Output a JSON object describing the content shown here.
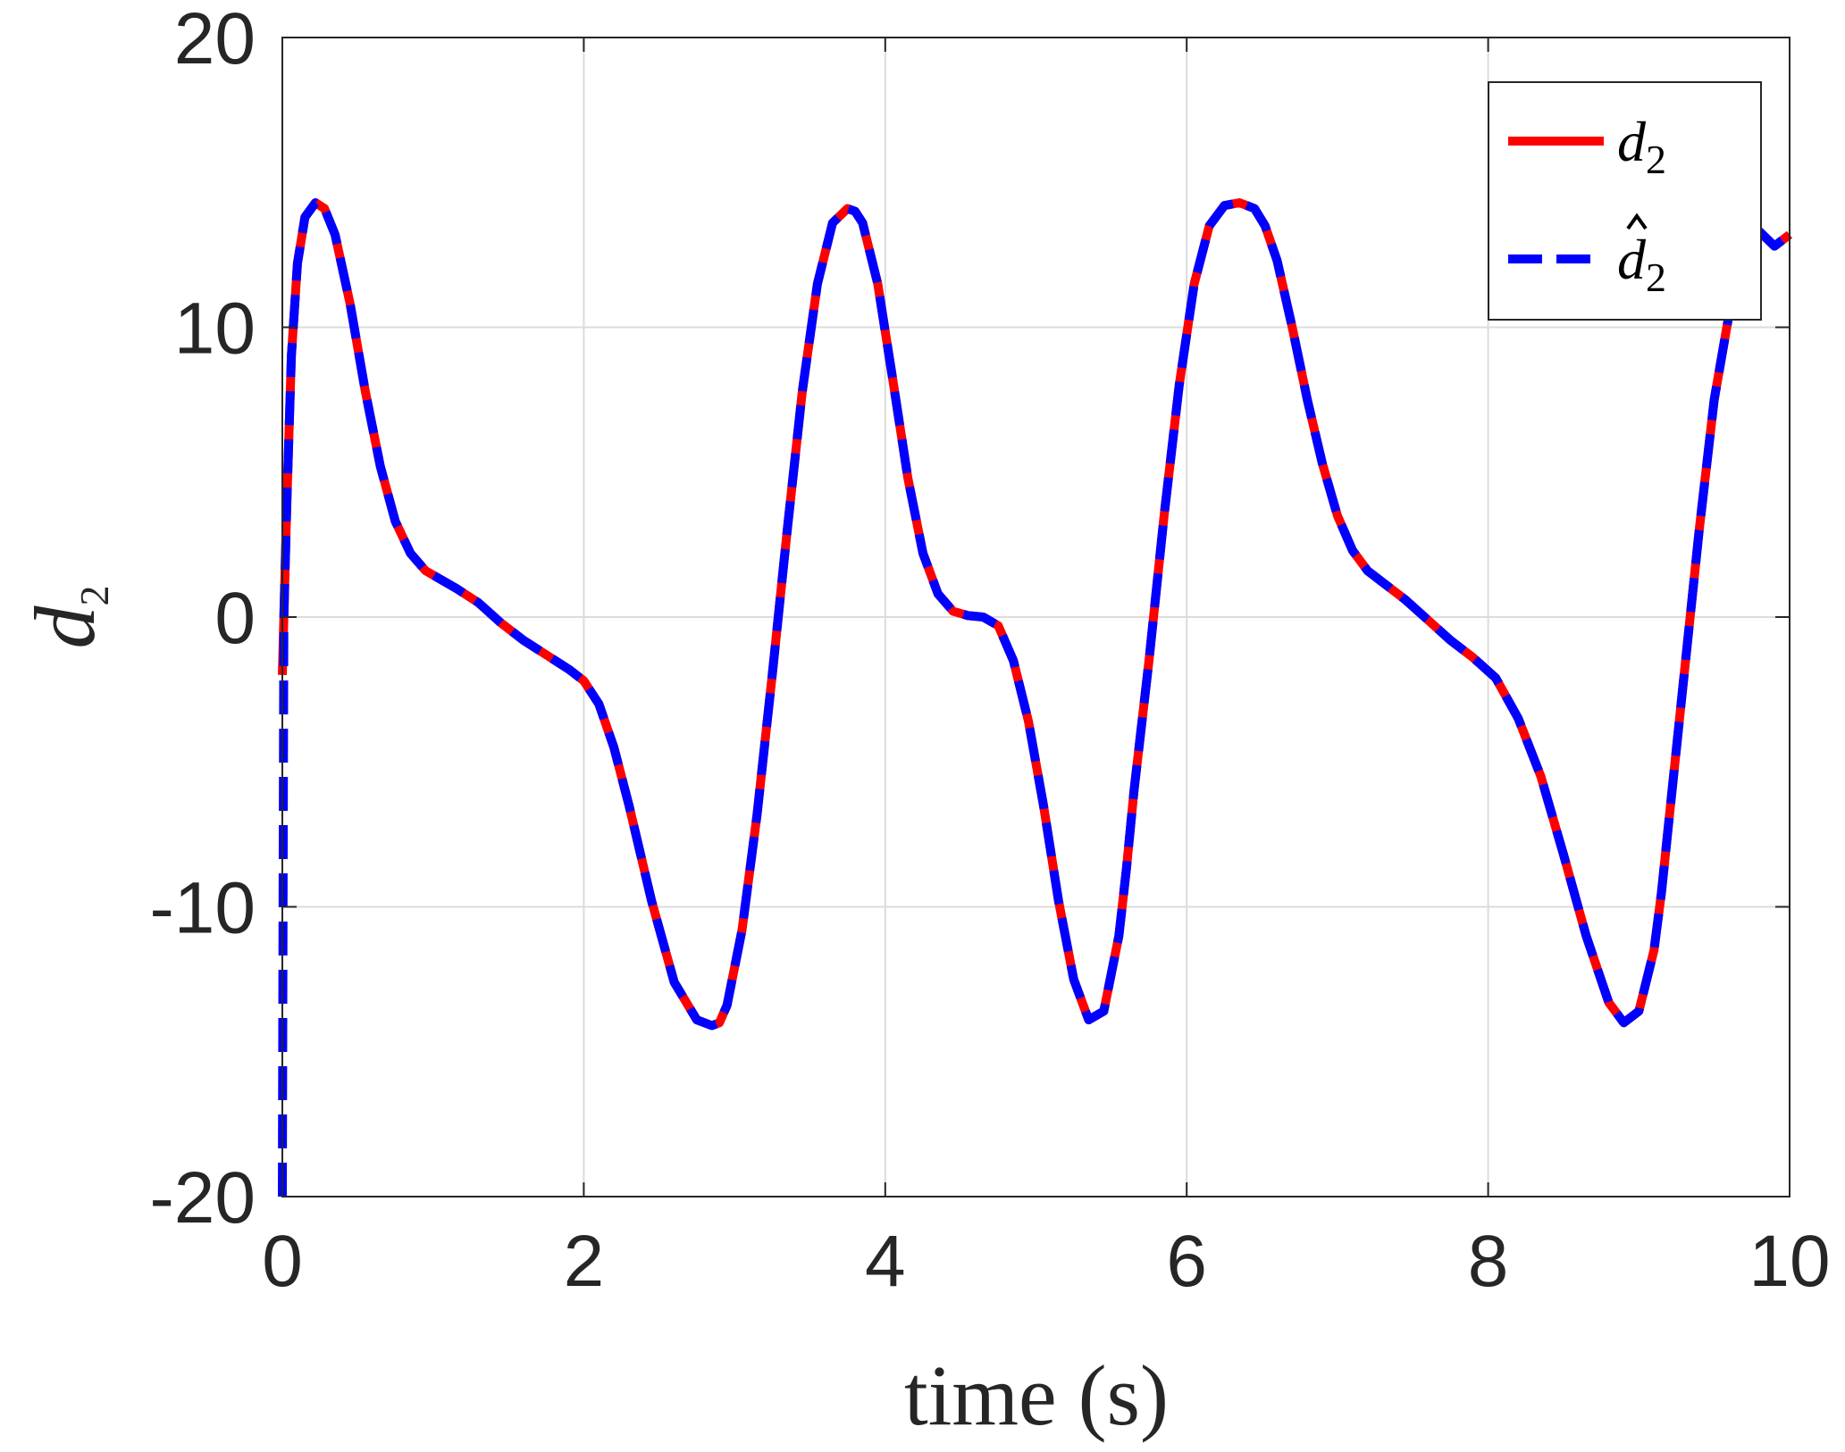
{
  "chart_data": {
    "type": "line",
    "xlabel": "time (s)",
    "ylabel": "d",
    "ylabel_subscript": "2",
    "xlim": [
      0,
      10
    ],
    "ylim": [
      -20,
      20
    ],
    "xticks": [
      0,
      2,
      4,
      6,
      8,
      10
    ],
    "yticks": [
      -20,
      -10,
      0,
      10,
      20
    ],
    "grid": true,
    "legend_position": "top-right",
    "series": [
      {
        "name": "d",
        "subscript": "2",
        "hat": false,
        "color": "#ff0000",
        "style": "solid",
        "x": [
          0.0,
          0.03,
          0.06,
          0.1,
          0.15,
          0.22,
          0.28,
          0.35,
          0.45,
          0.55,
          0.65,
          0.75,
          0.85,
          0.95,
          1.05,
          1.15,
          1.3,
          1.45,
          1.6,
          1.75,
          1.9,
          2.0,
          2.1,
          2.2,
          2.3,
          2.45,
          2.6,
          2.75,
          2.85,
          2.9,
          2.95,
          3.05,
          3.15,
          3.25,
          3.35,
          3.45,
          3.55,
          3.65,
          3.75,
          3.8,
          3.85,
          3.95,
          4.05,
          4.15,
          4.25,
          4.35,
          4.45,
          4.55,
          4.65,
          4.75,
          4.85,
          4.95,
          5.05,
          5.15,
          5.25,
          5.35,
          5.45,
          5.55,
          5.6,
          5.65,
          5.75,
          5.85,
          5.95,
          6.05,
          6.15,
          6.25,
          6.35,
          6.45,
          6.52,
          6.6,
          6.7,
          6.8,
          6.9,
          7.0,
          7.1,
          7.2,
          7.3,
          7.45,
          7.6,
          7.75,
          7.9,
          8.05,
          8.2,
          8.35,
          8.5,
          8.65,
          8.8,
          8.9,
          9.0,
          9.1,
          9.15,
          9.2,
          9.3,
          9.4,
          9.5,
          9.6,
          9.7,
          9.8,
          9.9,
          10.0
        ],
        "values": [
          -2.0,
          4.0,
          9.0,
          12.2,
          13.8,
          14.3,
          14.1,
          13.2,
          10.8,
          7.8,
          5.2,
          3.3,
          2.2,
          1.6,
          1.3,
          1.0,
          0.5,
          -0.2,
          -0.8,
          -1.3,
          -1.8,
          -2.2,
          -3.0,
          -4.5,
          -6.5,
          -9.8,
          -12.6,
          -13.9,
          -14.1,
          -14.0,
          -13.4,
          -10.8,
          -6.8,
          -2.0,
          3.0,
          7.8,
          11.5,
          13.6,
          14.1,
          14.0,
          13.6,
          11.5,
          8.2,
          4.8,
          2.2,
          0.8,
          0.2,
          0.05,
          0.0,
          -0.3,
          -1.5,
          -3.6,
          -6.5,
          -9.8,
          -12.5,
          -13.9,
          -13.6,
          -11.0,
          -8.7,
          -6.0,
          -1.5,
          3.5,
          8.0,
          11.5,
          13.5,
          14.2,
          14.3,
          14.1,
          13.5,
          12.3,
          10.0,
          7.5,
          5.3,
          3.5,
          2.3,
          1.6,
          1.2,
          0.6,
          -0.1,
          -0.8,
          -1.4,
          -2.1,
          -3.5,
          -5.5,
          -8.2,
          -11.0,
          -13.3,
          -14.0,
          -13.6,
          -11.5,
          -9.5,
          -7.0,
          -2.0,
          3.0,
          7.5,
          10.5,
          12.5,
          13.3,
          12.8,
          13.2
        ]
      },
      {
        "name": "d",
        "subscript": "2",
        "hat": true,
        "color": "#0000ff",
        "style": "dashed",
        "x": [
          0.0,
          0.005,
          0.01,
          0.02,
          0.03,
          0.06,
          0.1,
          0.15,
          0.22,
          0.28,
          0.35,
          0.45,
          0.55,
          0.65,
          0.75,
          0.85,
          0.95,
          1.05,
          1.15,
          1.3,
          1.45,
          1.6,
          1.75,
          1.9,
          2.0,
          2.1,
          2.2,
          2.3,
          2.45,
          2.6,
          2.75,
          2.85,
          2.9,
          2.95,
          3.05,
          3.15,
          3.25,
          3.35,
          3.45,
          3.55,
          3.65,
          3.75,
          3.8,
          3.85,
          3.95,
          4.05,
          4.15,
          4.25,
          4.35,
          4.45,
          4.55,
          4.65,
          4.75,
          4.85,
          4.95,
          5.05,
          5.15,
          5.25,
          5.35,
          5.45,
          5.55,
          5.6,
          5.65,
          5.75,
          5.85,
          5.95,
          6.05,
          6.15,
          6.25,
          6.35,
          6.45,
          6.52,
          6.6,
          6.7,
          6.8,
          6.9,
          7.0,
          7.1,
          7.2,
          7.3,
          7.45,
          7.6,
          7.75,
          7.9,
          8.05,
          8.2,
          8.35,
          8.5,
          8.65,
          8.8,
          8.9,
          9.0,
          9.1,
          9.15,
          9.2,
          9.3,
          9.4,
          9.5,
          9.6,
          9.7,
          9.8,
          9.9,
          10.0
        ],
        "values": [
          -20.0,
          -10.0,
          0.0,
          2.0,
          4.0,
          9.0,
          12.2,
          13.8,
          14.3,
          14.1,
          13.2,
          10.8,
          7.8,
          5.2,
          3.3,
          2.2,
          1.6,
          1.3,
          1.0,
          0.5,
          -0.2,
          -0.8,
          -1.3,
          -1.8,
          -2.2,
          -3.0,
          -4.5,
          -6.5,
          -9.8,
          -12.6,
          -13.9,
          -14.1,
          -14.0,
          -13.4,
          -10.8,
          -6.8,
          -2.0,
          3.0,
          7.8,
          11.5,
          13.6,
          14.1,
          14.0,
          13.6,
          11.5,
          8.2,
          4.8,
          2.2,
          0.8,
          0.2,
          0.05,
          0.0,
          -0.3,
          -1.5,
          -3.6,
          -6.5,
          -9.8,
          -12.5,
          -13.9,
          -13.6,
          -11.0,
          -8.7,
          -6.0,
          -1.5,
          3.5,
          8.0,
          11.5,
          13.5,
          14.2,
          14.3,
          14.1,
          13.5,
          12.3,
          10.0,
          7.5,
          5.3,
          3.5,
          2.3,
          1.6,
          1.2,
          0.6,
          -0.1,
          -0.8,
          -1.4,
          -2.1,
          -3.5,
          -5.5,
          -8.2,
          -11.0,
          -13.3,
          -14.0,
          -13.6,
          -11.5,
          -9.5,
          -7.0,
          -2.0,
          3.0,
          7.5,
          10.5,
          12.5,
          13.3,
          12.8,
          13.2
        ]
      }
    ]
  }
}
